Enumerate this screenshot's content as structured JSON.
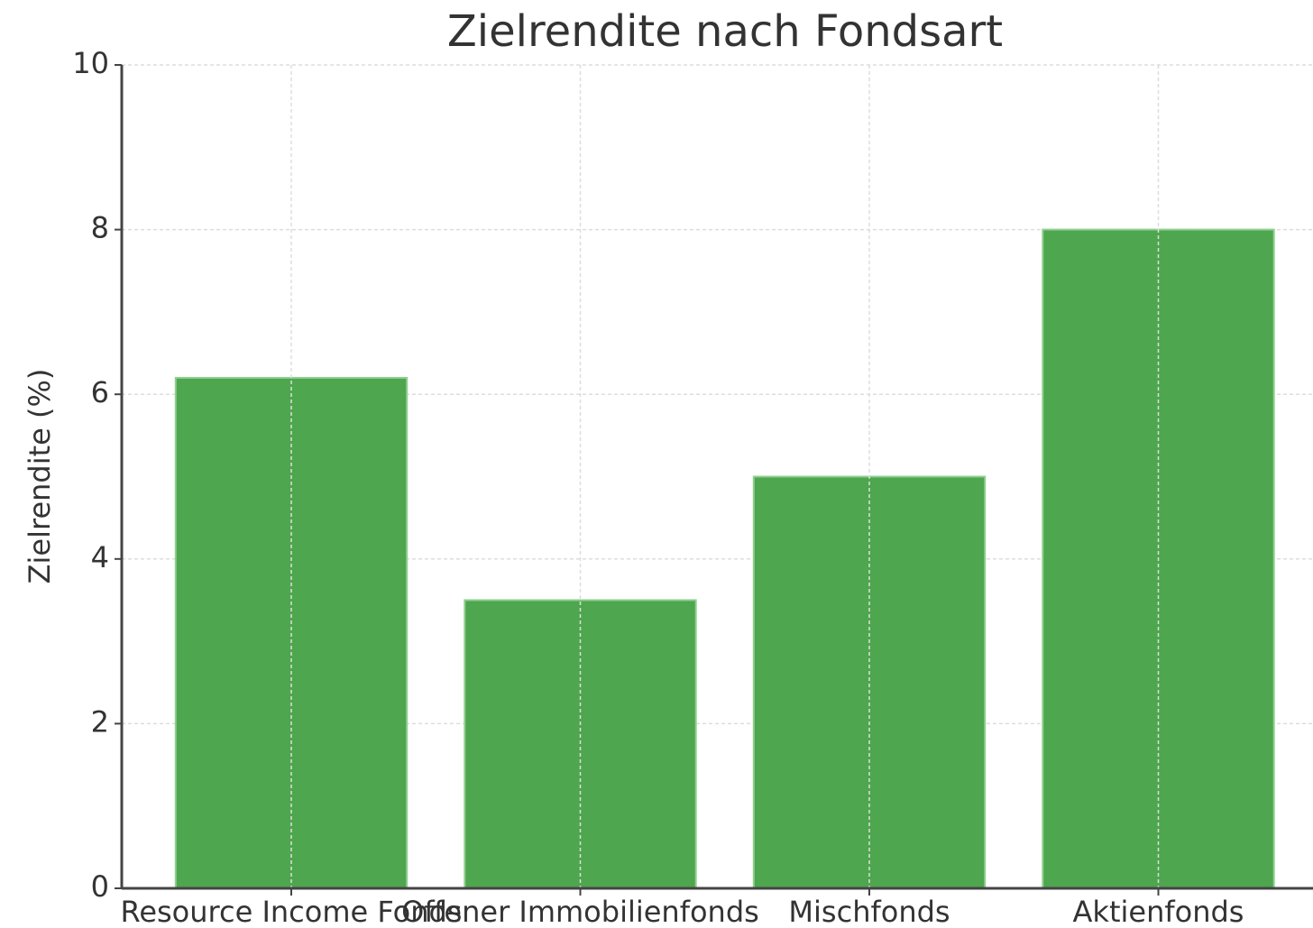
{
  "chart_data": {
    "type": "bar",
    "title": "Zielrendite nach Fondsart",
    "y_label": "Zielrendite (%)",
    "categories": [
      "Resource Income Fonds",
      "Offener Immobilienfonds",
      "Mischfonds",
      "Aktienfonds"
    ],
    "values": [
      6.2,
      3.5,
      5.0,
      8.0
    ],
    "color": "#4ea64e",
    "ylim": [
      0,
      10
    ],
    "yticks": [
      0,
      2,
      4,
      6,
      8,
      10
    ],
    "grid": true
  }
}
